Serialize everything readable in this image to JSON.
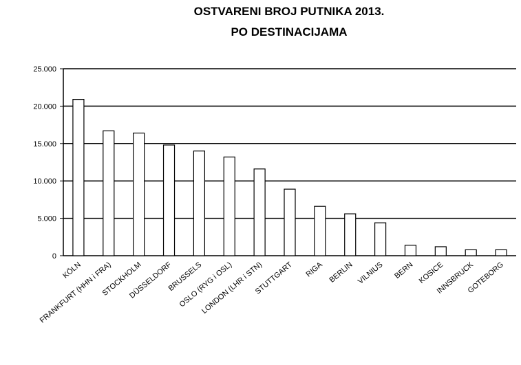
{
  "chart_data": {
    "type": "bar",
    "title": [
      "OSTVARENI BROJ PUTNIKA  2013.",
      "PO DESTINACIJAMA"
    ],
    "categories": [
      "KÖLN",
      "FRANKFURT (HHN i FRA)",
      "STOCKHOLM",
      "DÜSSELDORF",
      "BRUSSELS",
      "OSLO (RYG i OSL)",
      "LONDON (LHR i STN)",
      "STUTTGART",
      "RIGA",
      "BERLIN",
      "VILNIUS",
      "BERN",
      "KOSICE",
      "INNSBRUCK",
      "GOTEBORG"
    ],
    "values": [
      20900,
      16700,
      16400,
      14800,
      14000,
      13200,
      11600,
      8900,
      6600,
      5600,
      4400,
      1400,
      1200,
      800,
      800
    ],
    "color": "#ffffff",
    "ylim": [
      0,
      25000
    ],
    "yticks": [
      0,
      {
        "value": 5000,
        "label": "5.000"
      },
      {
        "value": 10000,
        "label": "10.000"
      },
      {
        "value": 15000,
        "label": "15.000"
      },
      {
        "value": 20000,
        "label": "20.000"
      },
      {
        "value": 25000,
        "label": "25.000"
      }
    ],
    "grid": true
  }
}
